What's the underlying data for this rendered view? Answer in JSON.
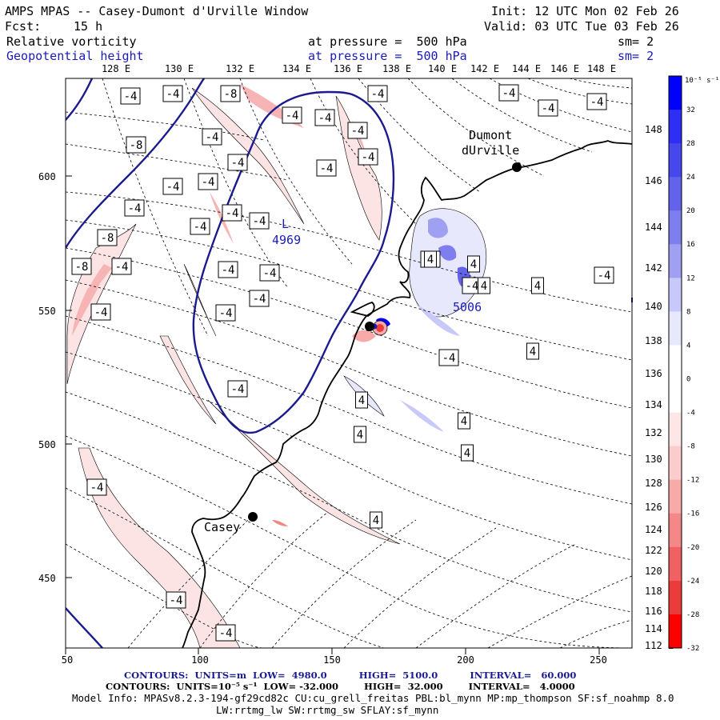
{
  "header": {
    "title": "AMPS MPAS -- Casey-Dumont d'Urville Window",
    "init": "Init: 12 UTC Mon 02 Feb 26",
    "fcst_label": "Fcst:",
    "fcst_value": "15 h",
    "valid": "Valid: 03 UTC Tue 03 Feb 26",
    "field1_name": "Relative vorticity",
    "field1_level": "at pressure =  500 hPa",
    "field1_sm": "sm= 2",
    "field2_name": "Geopotential height",
    "field2_level": "at pressure =  500 hPa",
    "field2_sm": "sm= 2"
  },
  "colors": {
    "height_contour": "#1b1b8f",
    "pos_vort": "#0000ff",
    "neg_vort": "#ff0000",
    "background": "#ffffff"
  },
  "map": {
    "top_lon_labels": [
      "128 E",
      "130 E",
      "132 E",
      "134 E",
      "136 E",
      "138 E",
      "140 E",
      "142 E",
      "144 E",
      "146 E",
      "148 E"
    ],
    "right_lon_labels": [
      "148 E",
      "146 E",
      "144 E",
      "142 E",
      "140 E",
      "138 E",
      "136 E",
      "134 E",
      "132 E",
      "130 E",
      "128 E",
      "126 E",
      "124 E",
      "122 E",
      "120 E",
      "118 E",
      "116 E",
      "114 E",
      "112 E"
    ],
    "x_ticks": [
      "50",
      "100",
      "150",
      "200",
      "250"
    ],
    "y_ticks": [
      "600",
      "550",
      "500",
      "450"
    ],
    "stations": [
      {
        "name": "Dumont\ndUrville",
        "line1": "Dumont",
        "line2": "dUrville"
      },
      {
        "name": "Casey",
        "line1": "Casey"
      }
    ],
    "low_label": "L",
    "low_value": "4969",
    "high_value": "5006",
    "neg_vort_labels": [
      "-4",
      "-4",
      "-8",
      "-4",
      "-4",
      "-4",
      "-4",
      "-8",
      "-4",
      "-4",
      "-4",
      "-4",
      "-4",
      "-4",
      "-4",
      "-4",
      "-4",
      "-8",
      "-4",
      "-8",
      "-4",
      "-4",
      "-4",
      "-4",
      "-4",
      "-4",
      "-4",
      "-4",
      "-4",
      "-4",
      "-4",
      "-4",
      "-4",
      "-4",
      "-4",
      "-4",
      "-4"
    ],
    "pos_vort_labels": [
      "4",
      "4",
      "4",
      "4",
      "4",
      "4",
      "4",
      "4",
      "4",
      "4"
    ]
  },
  "colorbar": {
    "unit_label": "10⁻⁵ s⁻¹",
    "levels": [
      "32",
      "28",
      "24",
      "20",
      "16",
      "12",
      "8",
      "4",
      "0",
      "-4",
      "-8",
      "-12",
      "-16",
      "-20",
      "-24",
      "-28",
      "-32"
    ],
    "colors": [
      "#0000ff",
      "#2e2ef5",
      "#4747ee",
      "#6262ea",
      "#7e7eee",
      "#a0a0f3",
      "#c8c8fa",
      "#e8e8fd",
      "#ffffff",
      "#ffffff",
      "#fde6e6",
      "#fbcccc",
      "#f8aaaa",
      "#f48888",
      "#f06262",
      "#ec3b3b",
      "#ff0000"
    ]
  },
  "footer": {
    "contours1": "CONTOURS:  UNITS=m  LOW=  4980.0          HIGH=  5100.0          INTERVAL=   60.000",
    "contours2": "CONTOURS:  UNITS=10⁻⁵ s⁻¹  LOW= -32.000        HIGH=  32.000        INTERVAL=   4.0000",
    "model_info": "Model Info: MPASv8.2.3-194-gf29cd82c CU:cu_grell_freitas PBL:bl_mynn MP:mp_thompson SF:sf_noahmp 8.0",
    "model_info2": "LW:rrtmg_lw SW:rrtmg_sw SFLAY:sf_mynn"
  }
}
